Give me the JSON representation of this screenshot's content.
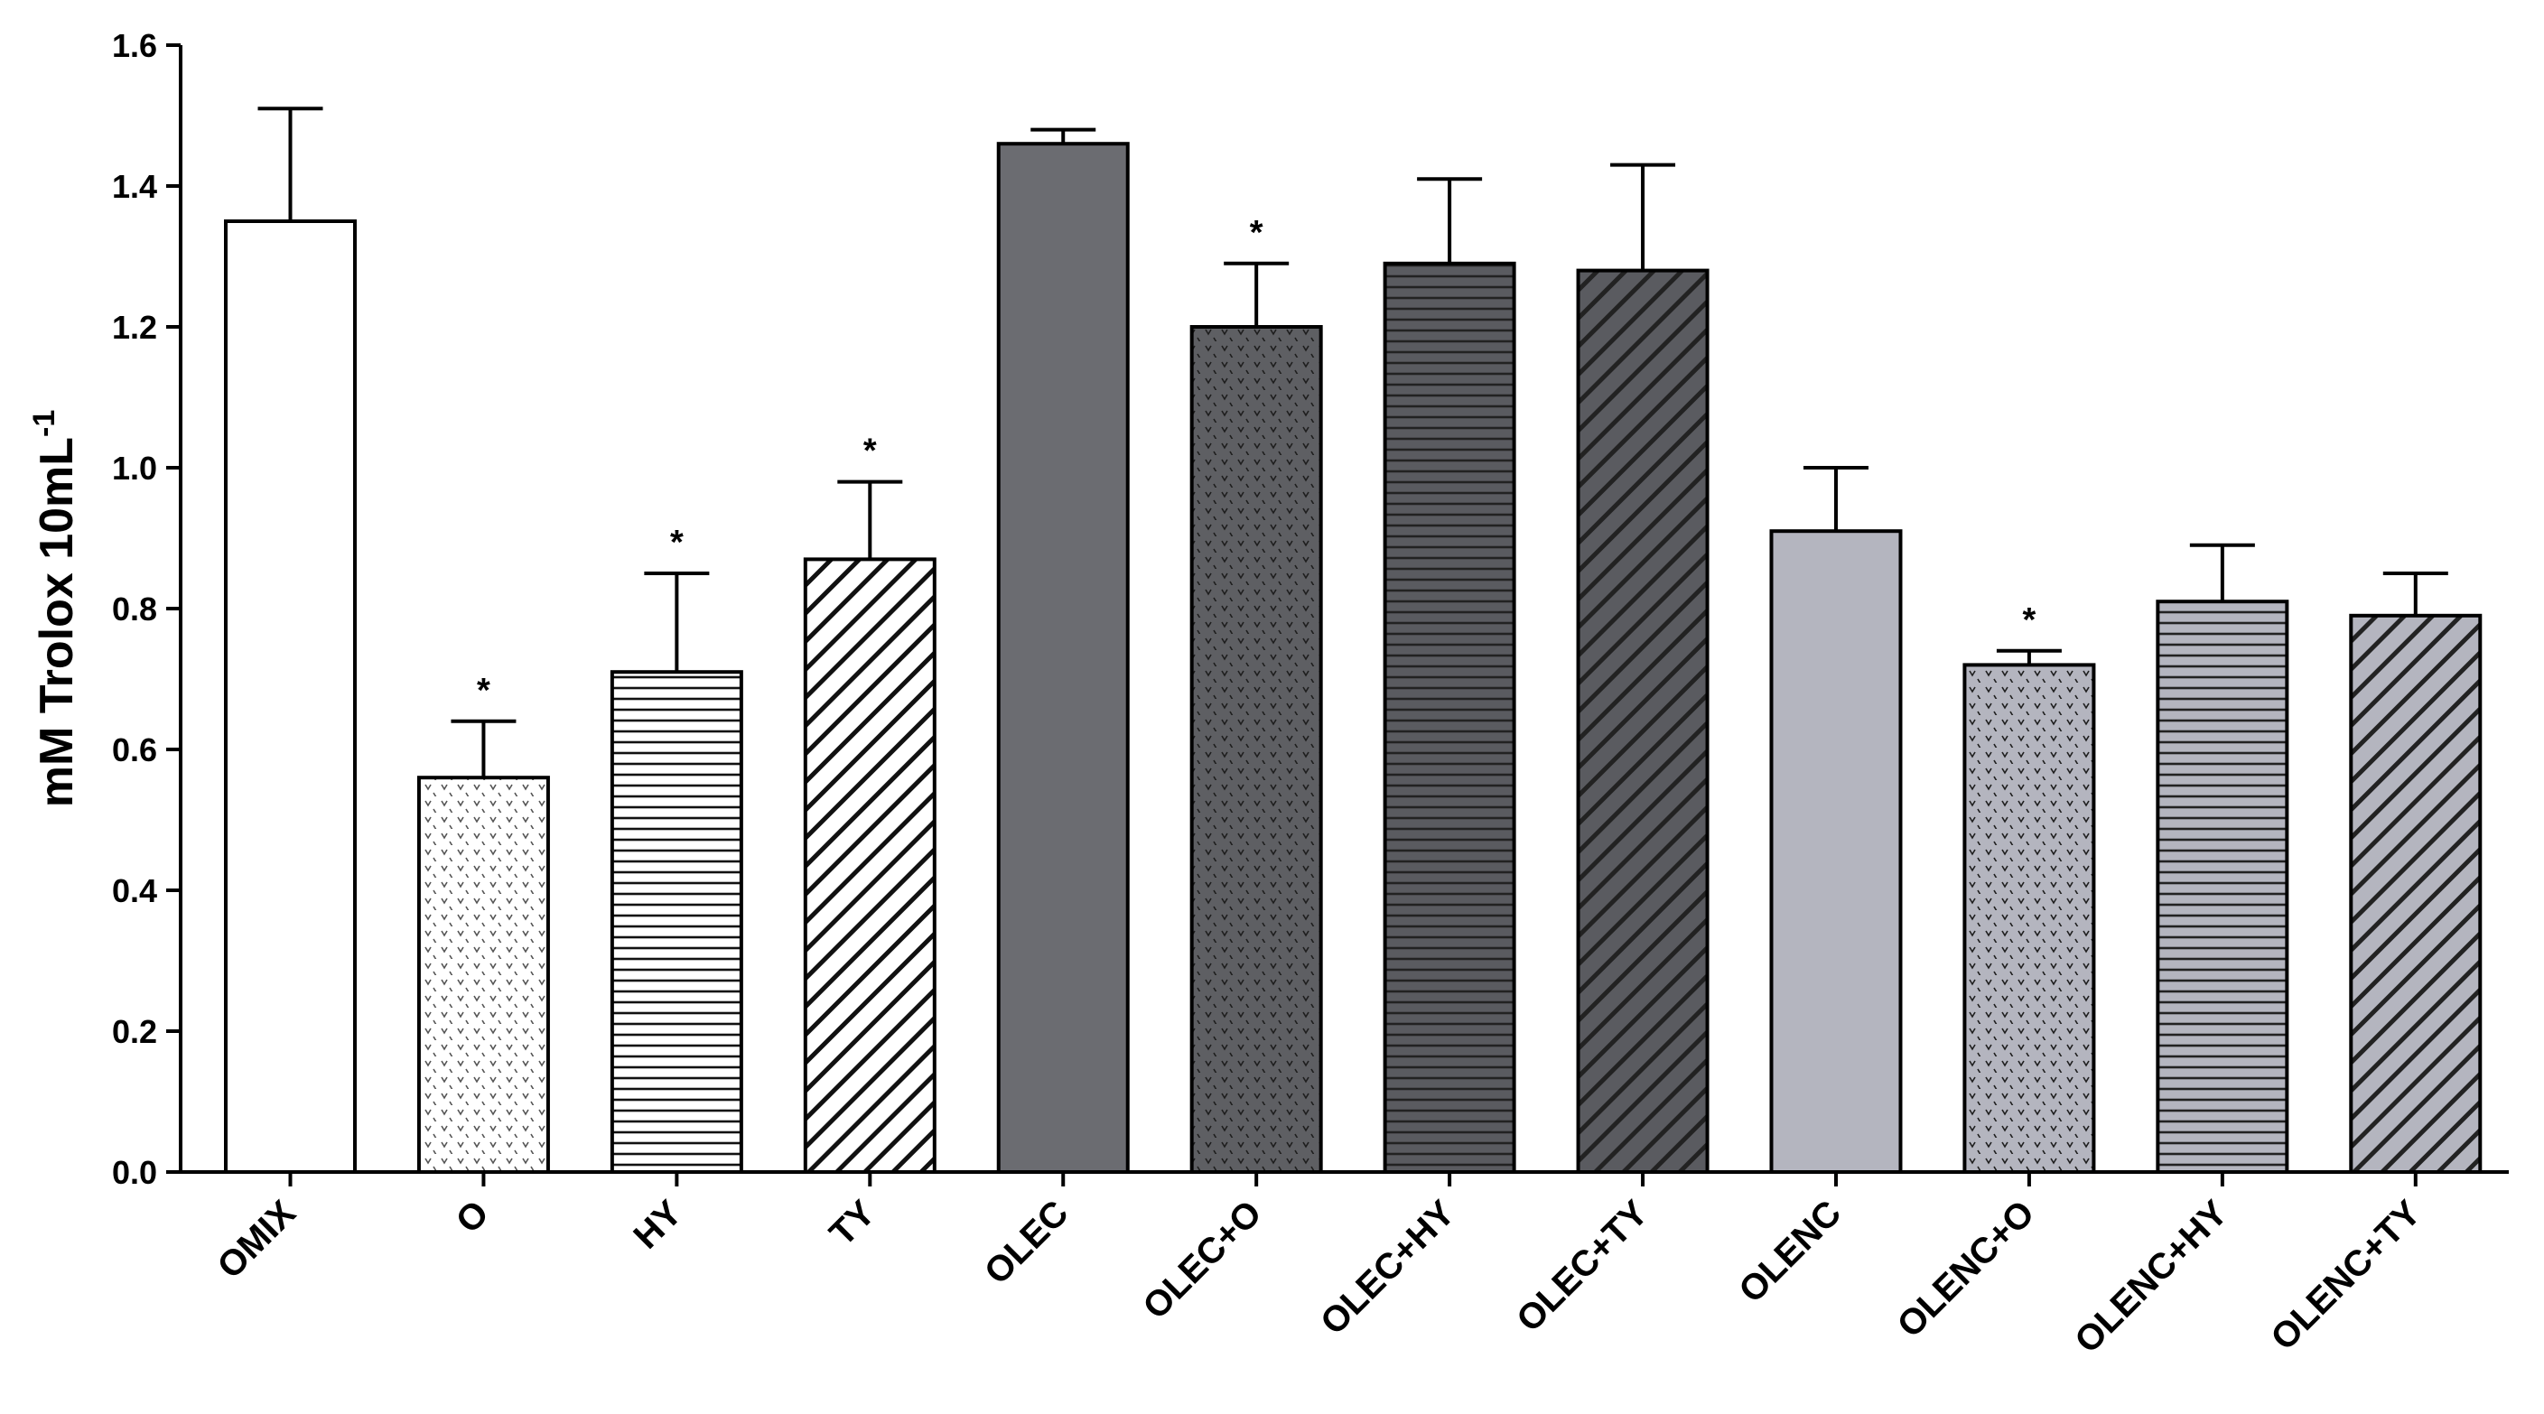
{
  "chart_data": {
    "type": "bar",
    "title": "",
    "xlabel": "",
    "ylabel": "mM Trolox 10mL",
    "ylabel_superscript": "-1",
    "ylim": [
      0,
      1.6
    ],
    "yticks": [
      "0.0",
      "0.2",
      "0.4",
      "0.6",
      "0.8",
      "1.0",
      "1.2",
      "1.4",
      "1.6"
    ],
    "grid": false,
    "legend": "none",
    "categories": [
      "OMIX",
      "O",
      "HY",
      "TY",
      "OLEC",
      "OLEC+O",
      "OLEC+HY",
      "OLEC+TY",
      "OLENC",
      "OLENC+O",
      "OLENC+HY",
      "OLENC+TY"
    ],
    "values": [
      1.35,
      0.56,
      0.71,
      0.87,
      1.46,
      1.2,
      1.29,
      1.28,
      0.91,
      0.72,
      0.81,
      0.79
    ],
    "errors": [
      0.16,
      0.08,
      0.14,
      0.11,
      0.02,
      0.09,
      0.12,
      0.15,
      0.09,
      0.02,
      0.08,
      0.06
    ],
    "significance": [
      "",
      "*",
      "*",
      "*",
      "",
      "*",
      "",
      "",
      "",
      "*",
      "",
      ""
    ],
    "fills": [
      "#ffffff",
      "#ffffff",
      "#ffffff",
      "#ffffff",
      "#6b6c71",
      "#5e5f63",
      "#5a5b60",
      "#5a5b60",
      "#b4b5bf",
      "#b4b5bf",
      "#b4b5bf",
      "#b4b5bf"
    ],
    "patterns": [
      "solid",
      "chevron",
      "horizontal",
      "diagonal",
      "solid",
      "chevron",
      "horizontal",
      "diagonal",
      "solid",
      "chevron",
      "horizontal",
      "diagonal"
    ]
  }
}
